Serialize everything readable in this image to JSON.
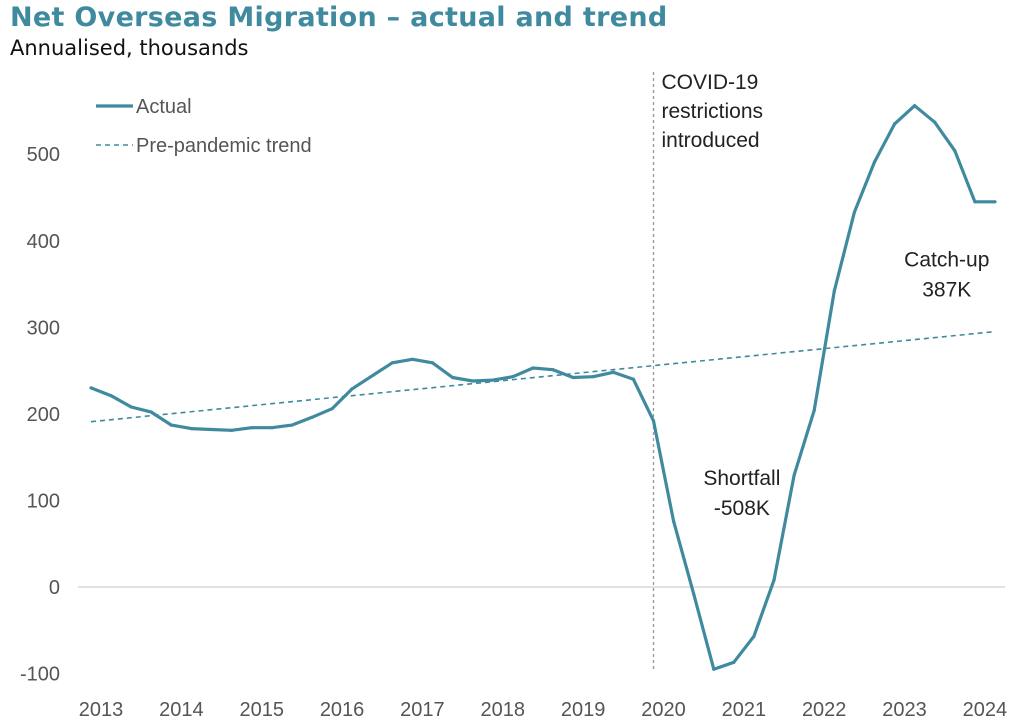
{
  "chart_data": {
    "type": "line",
    "title": "Net Overseas Migration – actual and trend",
    "subtitle": "Annualised, thousands",
    "xlabel": "",
    "ylabel": "",
    "ylim": [
      -100,
      560
    ],
    "xlim": [
      2013,
      2024.35
    ],
    "y_ticks": [
      -100,
      0,
      100,
      200,
      300,
      400,
      500
    ],
    "x_ticks": [
      2013,
      2014,
      2015,
      2016,
      2017,
      2018,
      2019,
      2020,
      2021,
      2022,
      2023,
      2024
    ],
    "grid": false,
    "legend_position": "top-left",
    "series": [
      {
        "name": "Actual",
        "style": "solid",
        "color": "#3f8a9e",
        "x": [
          2013.0,
          2013.25,
          2013.5,
          2013.75,
          2014.0,
          2014.25,
          2014.5,
          2014.75,
          2015.0,
          2015.25,
          2015.5,
          2015.75,
          2016.0,
          2016.25,
          2016.5,
          2016.75,
          2017.0,
          2017.25,
          2017.5,
          2017.75,
          2018.0,
          2018.25,
          2018.5,
          2018.75,
          2019.0,
          2019.25,
          2019.5,
          2019.75,
          2020.0,
          2020.25,
          2020.5,
          2020.75,
          2021.0,
          2021.25,
          2021.5,
          2021.75,
          2022.0,
          2022.25,
          2022.5,
          2022.75,
          2023.0,
          2023.25,
          2023.5,
          2023.75,
          2024.0,
          2024.25
        ],
        "values": [
          230,
          221,
          208,
          202,
          187,
          183,
          182,
          181,
          184,
          184,
          187,
          196,
          206,
          229,
          244,
          259,
          263,
          259,
          242,
          238,
          239,
          243,
          253,
          251,
          242,
          243,
          248,
          240,
          192,
          76,
          -8,
          -95,
          -87,
          -57,
          8,
          129,
          204,
          342,
          433,
          491,
          535,
          556,
          537,
          504,
          445,
          445
        ]
      },
      {
        "name": "Pre-pandemic trend",
        "style": "dashed",
        "color": "#3f8a9e",
        "x": [
          2013.0,
          2024.25
        ],
        "values": [
          191,
          295
        ]
      }
    ],
    "event_line": {
      "x": 2020.0,
      "label_lines": [
        "COVID-19",
        "restrictions",
        "introduced"
      ]
    },
    "annotations": [
      {
        "lines": [
          "Shortfall",
          "-508K"
        ],
        "x": 2021.1,
        "y": 118
      },
      {
        "lines": [
          "Catch-up",
          "387K"
        ],
        "x": 2023.65,
        "y": 370
      }
    ],
    "colors": {
      "accent": "#3f8a9e",
      "axis": "#d9d9d9",
      "event_line": "#999999"
    }
  }
}
